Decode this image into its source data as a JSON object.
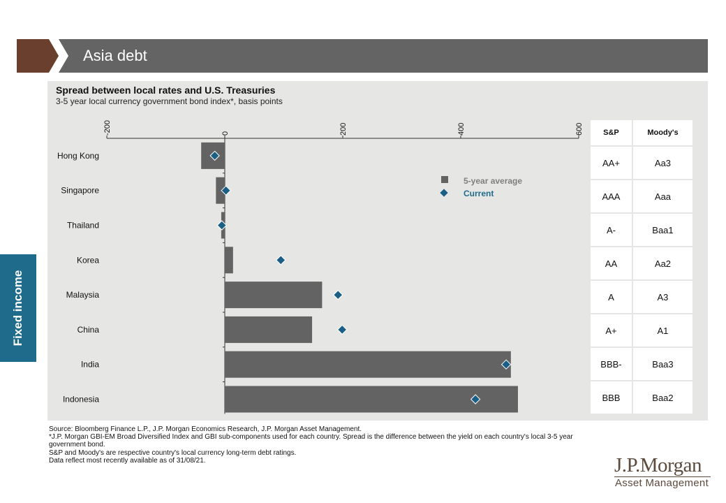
{
  "header": {
    "title": "Asia debt"
  },
  "side_tab": {
    "label": "Fixed income"
  },
  "colors": {
    "bar": "#636363",
    "marker": "#1a5f85",
    "panel": "#e6e6e4",
    "header_arrow": "#6b3f2d",
    "header_bar": "#646464",
    "side_tab": "#1f6b8c"
  },
  "chart_data": {
    "type": "bar",
    "orientation": "horizontal",
    "title": "Spread between local rates and U.S. Treasuries",
    "subtitle": "3-5 year local currency government  bond index*, basis points",
    "categories": [
      "Hong Kong",
      "Singapore",
      "Thailand",
      "Korea",
      "Malaysia",
      "China",
      "India",
      "Indonesia"
    ],
    "series": [
      {
        "name": "5-year average",
        "kind": "bar",
        "values": [
          -40,
          -15,
          -6,
          14,
          165,
          148,
          485,
          497
        ]
      },
      {
        "name": "Current",
        "kind": "marker",
        "values": [
          -17,
          2,
          -5,
          95,
          192,
          199,
          477,
          425
        ]
      }
    ],
    "xlim": [
      -200,
      600
    ],
    "ticks": [
      -200,
      0,
      200,
      400,
      600
    ],
    "tick_labels": [
      "-200",
      "0",
      "200",
      "400",
      "600"
    ],
    "axis_position": "top",
    "grid": false,
    "legend": "upper-right inside plot"
  },
  "ratings_table": {
    "headers": [
      "S&P",
      "Moody's"
    ],
    "rows": [
      [
        "AA+",
        "Aa3"
      ],
      [
        "AAA",
        "Aaa"
      ],
      [
        "A-",
        "Baa1"
      ],
      [
        "AA",
        "Aa2"
      ],
      [
        "A",
        "A3"
      ],
      [
        "A+",
        "A1"
      ],
      [
        "BBB-",
        "Baa3"
      ],
      [
        "BBB",
        "Baa2"
      ]
    ]
  },
  "footnotes": {
    "source": "Source: Bloomberg Finance L.P., J.P. Morgan Economics Research, J.P. Morgan Asset Management.",
    "note1": "*J.P. Morgan GBI-EM  Broad Diversified Index and GBI sub-components used for each country. Spread is the difference between the yield on each country's local 3-5 year government bond.",
    "note2": "S&P and Moody's are respective country's local currency long-term debt ratings.",
    "note3": "Data reflect most recently available as of 31/08/21."
  },
  "logo": {
    "name": "J.P.Morgan",
    "sub": "Asset Management"
  }
}
